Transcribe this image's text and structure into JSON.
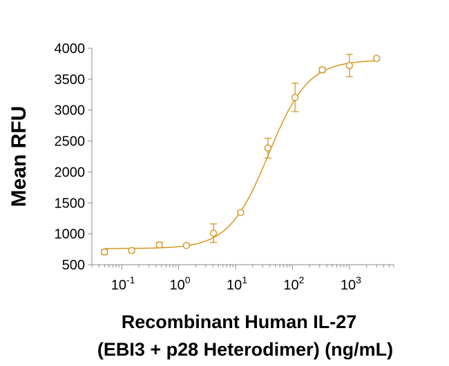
{
  "chart_data": {
    "type": "scatter",
    "title": "",
    "ylabel": "Mean RFU",
    "xlabel_line1": "Recombinant Human IL-27",
    "xlabel_line2": "(EBI3 + p28 Heterodimer) (ng/mL)",
    "xscale": "log",
    "xlim": [
      0.03,
      6000
    ],
    "ylim": [
      500,
      4000
    ],
    "grid": false,
    "line_color": "#D89B2C",
    "yticks": [
      {
        "value": 500,
        "label": "500"
      },
      {
        "value": 1000,
        "label": "1000"
      },
      {
        "value": 1500,
        "label": "1500"
      },
      {
        "value": 2000,
        "label": "2000"
      },
      {
        "value": 2500,
        "label": "2500"
      },
      {
        "value": 3000,
        "label": "3000"
      },
      {
        "value": 3500,
        "label": "3500"
      },
      {
        "value": 4000,
        "label": "4000"
      }
    ],
    "xticks": [
      {
        "value": 0.1,
        "base": "10",
        "exp": "-1"
      },
      {
        "value": 1,
        "base": "10",
        "exp": "0"
      },
      {
        "value": 10,
        "base": "10",
        "exp": "1"
      },
      {
        "value": 100,
        "base": "10",
        "exp": "2"
      },
      {
        "value": 1000,
        "base": "10",
        "exp": "3"
      }
    ],
    "series": [
      {
        "name": "Recombinant Human IL-27",
        "points": [
          {
            "x": 0.05,
            "y": 705,
            "err": 40
          },
          {
            "x": 0.15,
            "y": 730,
            "err": 25
          },
          {
            "x": 0.46,
            "y": 820,
            "err": 40
          },
          {
            "x": 1.37,
            "y": 810,
            "err": 20
          },
          {
            "x": 4.1,
            "y": 1010,
            "err": 150
          },
          {
            "x": 12.3,
            "y": 1345,
            "err": 30
          },
          {
            "x": 37,
            "y": 2385,
            "err": 160
          },
          {
            "x": 111,
            "y": 3205,
            "err": 230
          },
          {
            "x": 333,
            "y": 3650,
            "err": 40
          },
          {
            "x": 1000,
            "y": 3720,
            "err": 180
          },
          {
            "x": 3000,
            "y": 3835,
            "err": 0
          }
        ],
        "fit": {
          "model": "4PL",
          "bottom": 760,
          "top": 3810,
          "ec50": 38,
          "hill": 1.25
        }
      }
    ]
  }
}
